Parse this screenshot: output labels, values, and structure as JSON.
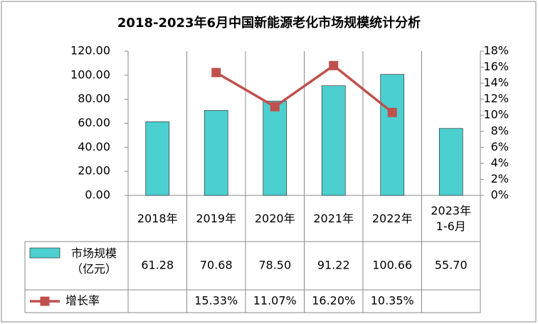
{
  "chart_data": {
    "type": "bar",
    "title": "2018-2023年6月中国新能源老化市场规模统计分析",
    "categories": [
      "2018年",
      "2019年",
      "2020年",
      "2021年",
      "2022年",
      "2023年\n1-6月"
    ],
    "series": [
      {
        "name": "市场规模\n（亿元）",
        "type": "bar",
        "color": "#4bcfcf",
        "values": [
          61.28,
          70.68,
          78.5,
          91.22,
          100.66,
          55.7
        ],
        "value_labels": [
          "61.28",
          "70.68",
          "78.50",
          "91.22",
          "100.66",
          "55.70"
        ]
      },
      {
        "name": "增长率",
        "type": "line",
        "axis": "y2",
        "color": "#c0504d",
        "values": [
          null,
          15.33,
          11.07,
          16.2,
          10.35,
          null
        ],
        "value_labels": [
          null,
          "15.33%",
          "11.07%",
          "16.20%",
          "10.35%",
          null
        ]
      }
    ],
    "ylim": [
      0,
      120
    ],
    "yticks": [
      {
        "value": 0,
        "label": "0.00"
      },
      {
        "value": 20,
        "label": "20.00"
      },
      {
        "value": 40,
        "label": "40.00"
      },
      {
        "value": 60,
        "label": "60.00"
      },
      {
        "value": 80,
        "label": "80.00"
      },
      {
        "value": 100,
        "label": "100.00"
      },
      {
        "value": 120,
        "label": "120.00"
      }
    ],
    "y2lim": [
      0,
      18
    ],
    "y2ticks": [
      {
        "value": 0,
        "label": "0%"
      },
      {
        "value": 2,
        "label": "2%"
      },
      {
        "value": 4,
        "label": "4%"
      },
      {
        "value": 6,
        "label": "6%"
      },
      {
        "value": 8,
        "label": "8%"
      },
      {
        "value": 10,
        "label": "10%"
      },
      {
        "value": 12,
        "label": "12%"
      },
      {
        "value": 14,
        "label": "14%"
      },
      {
        "value": 16,
        "label": "16%"
      },
      {
        "value": 18,
        "label": "18%"
      }
    ],
    "grid": false
  }
}
